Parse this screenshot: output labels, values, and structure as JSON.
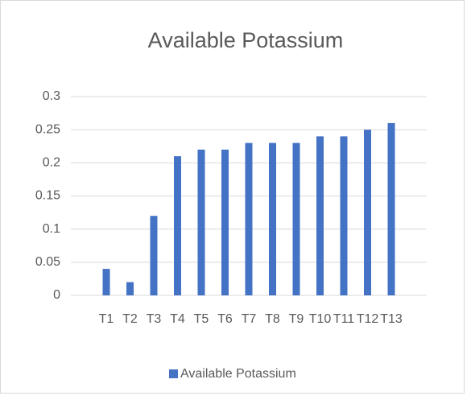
{
  "chart_data": {
    "type": "bar",
    "title": "Available Potassium",
    "categories": [
      "T1",
      "T2",
      "T3",
      "T4",
      "T5",
      "T6",
      "T7",
      "T8",
      "T9",
      "T10",
      "T11",
      "T12",
      "T13"
    ],
    "series": [
      {
        "name": "Available Potassium",
        "color": "#4472c4",
        "values": [
          0.04,
          0.02,
          0.12,
          0.21,
          0.22,
          0.22,
          0.23,
          0.23,
          0.23,
          0.24,
          0.24,
          0.25,
          0.26
        ]
      }
    ],
    "ylim": [
      0,
      0.3
    ],
    "yticks": [
      0,
      0.05,
      0.1,
      0.15,
      0.2,
      0.25,
      0.3
    ],
    "grid": true,
    "legend": "bottom"
  }
}
